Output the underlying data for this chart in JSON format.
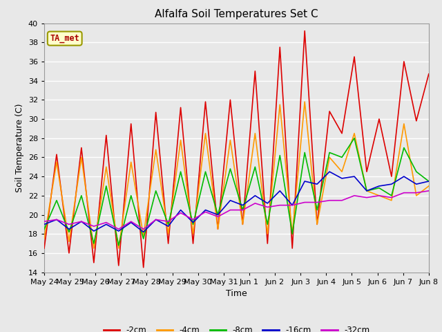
{
  "title": "Alfalfa Soil Temperatures Set C",
  "xlabel": "Time",
  "ylabel": "Soil Temperature (C)",
  "ylim": [
    14,
    40
  ],
  "yticks": [
    14,
    16,
    18,
    20,
    22,
    24,
    26,
    28,
    30,
    32,
    34,
    36,
    38,
    40
  ],
  "xtick_labels": [
    "May 24",
    "May 25",
    "May 26",
    "May 27",
    "May 28",
    "May 29",
    "May 30",
    "May 31",
    "Jun 1",
    "Jun 2",
    "Jun 3",
    "Jun 4",
    "Jun 5",
    "Jun 6",
    "Jun 7",
    "Jun 8"
  ],
  "bg_color": "#e8e8e8",
  "grid_color": "#ffffff",
  "legend_label": "TA_met",
  "series": {
    "-2cm": {
      "color": "#dd0000",
      "data": [
        16.5,
        26.3,
        16.0,
        27.0,
        15.0,
        28.3,
        14.7,
        29.5,
        14.5,
        30.7,
        17.0,
        31.2,
        17.0,
        31.8,
        18.5,
        32.0,
        19.0,
        35.0,
        17.0,
        37.5,
        16.5,
        39.2,
        19.0,
        30.8,
        28.5,
        36.5,
        24.5,
        30.0,
        24.0,
        36.0,
        29.8,
        34.7
      ]
    },
    "-4cm": {
      "color": "#ff9900",
      "data": [
        17.5,
        25.5,
        17.2,
        26.0,
        16.5,
        25.0,
        16.5,
        25.5,
        17.8,
        26.8,
        18.0,
        27.8,
        18.0,
        28.5,
        18.5,
        27.8,
        19.0,
        28.5,
        18.0,
        31.5,
        18.0,
        31.8,
        19.0,
        26.0,
        24.5,
        28.5,
        22.5,
        22.0,
        21.5,
        29.5,
        22.0,
        23.0
      ]
    },
    "-8cm": {
      "color": "#00bb00",
      "data": [
        18.5,
        21.5,
        18.2,
        22.0,
        17.0,
        23.0,
        16.8,
        22.0,
        17.5,
        22.5,
        19.0,
        24.5,
        19.0,
        24.5,
        20.0,
        24.8,
        20.5,
        25.0,
        19.0,
        26.2,
        18.0,
        26.5,
        20.5,
        26.5,
        26.0,
        28.0,
        22.5,
        22.8,
        22.0,
        27.0,
        24.5,
        23.5
      ]
    },
    "-16cm": {
      "color": "#0000cc",
      "data": [
        19.0,
        19.5,
        18.5,
        19.3,
        18.3,
        19.0,
        18.3,
        19.2,
        18.2,
        19.5,
        18.8,
        20.5,
        19.2,
        20.5,
        20.0,
        21.5,
        21.0,
        22.0,
        21.2,
        22.5,
        21.0,
        23.5,
        23.2,
        24.5,
        23.8,
        24.0,
        22.5,
        23.0,
        23.2,
        24.0,
        23.2,
        23.5
      ]
    },
    "-32cm": {
      "color": "#cc00cc",
      "data": [
        19.3,
        19.5,
        19.0,
        19.3,
        18.8,
        19.2,
        18.5,
        19.3,
        18.5,
        19.5,
        19.3,
        20.2,
        19.5,
        20.3,
        19.8,
        20.5,
        20.5,
        21.2,
        20.8,
        21.0,
        21.0,
        21.3,
        21.3,
        21.5,
        21.5,
        22.0,
        21.8,
        22.0,
        21.8,
        22.3,
        22.3,
        22.5
      ]
    }
  },
  "n_points_per_day": 2,
  "n_days": 16
}
